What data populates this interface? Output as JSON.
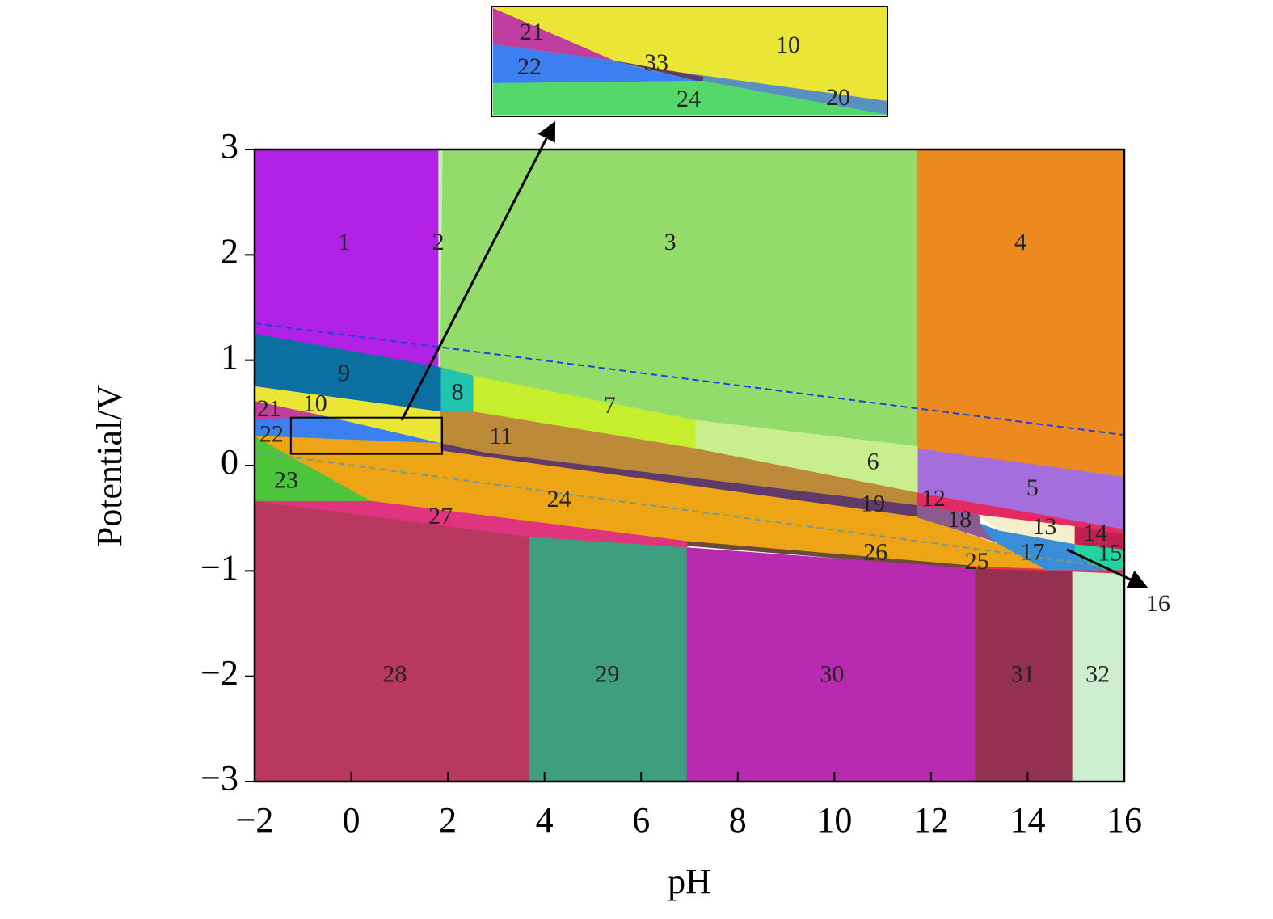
{
  "chart_data": {
    "type": "region",
    "x_label": "pH",
    "y_label": "Potential/V",
    "xlim": [
      -2,
      16
    ],
    "ylim": [
      -3,
      3
    ],
    "xticks": [
      {
        "value": -2,
        "label": "−2"
      },
      0,
      2,
      4,
      6,
      8,
      10,
      12,
      14,
      16
    ],
    "yticks": [
      {
        "value": -3,
        "label": "−3"
      },
      {
        "value": -2,
        "label": "−2"
      },
      {
        "value": -1,
        "label": "−1"
      },
      0,
      1,
      2,
      3
    ],
    "regions": [
      {
        "label": "1",
        "color": "#b122e6",
        "x": [
          -2,
          1.81,
          1.81,
          -2
        ],
        "y": [
          3,
          3,
          0.93,
          1.25
        ],
        "label_x": -0.15,
        "label_y": 2.1
      },
      {
        "label": "2",
        "color": "#c6ecb0",
        "x": [
          1.81,
          1.9,
          1.9,
          1.81
        ],
        "y": [
          3,
          3,
          0.93,
          0.93
        ],
        "label_x": 1.8,
        "label_y": 2.1
      },
      {
        "label": "3",
        "color": "#93dc6b",
        "x": [
          1.9,
          11.72,
          11.72,
          7.12,
          2.52,
          1.85
        ],
        "y": [
          3,
          3,
          0.18,
          0.43,
          0.85,
          0.93
        ],
        "label_x": 6.6,
        "label_y": 2.1
      },
      {
        "label": "4",
        "color": "#ec8a20",
        "x": [
          11.72,
          16,
          16,
          11.72
        ],
        "y": [
          3,
          3,
          -0.11,
          0.16
        ],
        "label_x": 13.85,
        "label_y": 2.1
      },
      {
        "label": "5",
        "color": "#a46fdc",
        "x": [
          11.72,
          16,
          16,
          11.72
        ],
        "y": [
          0.16,
          -0.11,
          -0.61,
          -0.26
        ],
        "label_x": 14.1,
        "label_y": -0.23
      },
      {
        "label": "6",
        "color": "#c9ee8f",
        "x": [
          7.12,
          11.72,
          11.72,
          7.12
        ],
        "y": [
          0.43,
          0.18,
          -0.26,
          0.16
        ],
        "label_x": 10.8,
        "label_y": 0.02
      },
      {
        "label": "7",
        "color": "#c7ee2c",
        "x": [
          2.52,
          7.12,
          7.12,
          2.52
        ],
        "y": [
          0.85,
          0.43,
          0.16,
          0.51
        ],
        "label_x": 5.35,
        "label_y": 0.55
      },
      {
        "label": "8",
        "color": "#22c4b0",
        "x": [
          1.85,
          2.52,
          2.52,
          1.85
        ],
        "y": [
          0.93,
          0.85,
          0.51,
          0.51
        ],
        "label_x": 2.2,
        "label_y": 0.68
      },
      {
        "label": "9",
        "color": "#0b6fa2",
        "x": [
          -2,
          1.85,
          1.85,
          -2
        ],
        "y": [
          1.25,
          0.93,
          0.51,
          0.75
        ],
        "label_x": -0.15,
        "label_y": 0.86
      },
      {
        "label": "10",
        "color": "#ebe535",
        "x": [
          -2,
          1.85,
          1.85,
          -0.58,
          -2
        ],
        "y": [
          0.75,
          0.51,
          0.21,
          0.47,
          0.61
        ],
        "label_x": -0.75,
        "label_y": 0.57
      },
      {
        "label": "21",
        "color": "#c03ea0",
        "x": [
          -2,
          -0.58,
          -2
        ],
        "y": [
          0.61,
          0.47,
          0.43
        ],
        "label_x": -1.7,
        "label_y": 0.52
      },
      {
        "label": "22",
        "color": "#3b7ff0",
        "x": [
          -2,
          -0.58,
          1.85,
          -2
        ],
        "y": [
          0.43,
          0.47,
          0.21,
          0.28
        ],
        "label_x": -1.65,
        "label_y": 0.28
      },
      {
        "label": "11",
        "color": "#bd8a3a",
        "x": [
          1.85,
          2.52,
          7.12,
          11.72,
          11.72,
          2.77,
          1.85
        ],
        "y": [
          0.51,
          0.51,
          0.16,
          -0.26,
          -0.38,
          0.12,
          0.21
        ],
        "label_x": 3.1,
        "label_y": 0.26
      },
      {
        "label": "19",
        "color": "#5f3a6a",
        "x": [
          1.85,
          2.77,
          11.72,
          11.72,
          1.85
        ],
        "y": [
          0.21,
          0.12,
          -0.38,
          -0.49,
          0.14
        ],
        "label_x": 10.8,
        "label_y": -0.38
      },
      {
        "label": "23",
        "color": "#4cc43c",
        "x": [
          -2,
          0.43,
          -2
        ],
        "y": [
          0.28,
          -0.34,
          -0.34
        ],
        "label_x": -1.35,
        "label_y": -0.16
      },
      {
        "label": "25",
        "color": "#e83050",
        "x": [
          12.8,
          16,
          16,
          12.8
        ],
        "y": [
          -0.95,
          -0.99,
          -1.03,
          -0.98
        ],
        "label_x": 12.95,
        "label_y": -0.93
      },
      {
        "label": "24",
        "color": "#eda515",
        "x": [
          -2,
          1.85,
          1.85,
          11.72,
          14.98,
          12.8,
          6.95,
          0.43
        ],
        "y": [
          0.28,
          0.21,
          0.14,
          -0.49,
          -0.99,
          -0.95,
          -0.72,
          -0.34
        ],
        "label_x": 4.3,
        "label_y": -0.34
      },
      {
        "label": "12",
        "color": "#e52a62",
        "x": [
          11.72,
          16,
          16,
          11.72
        ],
        "y": [
          -0.26,
          -0.61,
          -0.66,
          -0.38
        ],
        "label_x": 12.05,
        "label_y": -0.33
      },
      {
        "label": "18",
        "color": "#8a5a90",
        "x": [
          11.72,
          13,
          13,
          13.31,
          11.72
        ],
        "y": [
          -0.38,
          -0.47,
          -0.55,
          -0.72,
          -0.49
        ],
        "label_x": 12.59,
        "label_y": -0.53
      },
      {
        "label": "13",
        "color": "#f5f0cc",
        "x": [
          13,
          14.98,
          14.98,
          13.4
        ],
        "y": [
          -0.47,
          -0.58,
          -0.75,
          -0.62
        ],
        "label_x": 14.35,
        "label_y": -0.6
      },
      {
        "label": "14",
        "color": "#c22050",
        "x": [
          14.98,
          16,
          16,
          14.98
        ],
        "y": [
          -0.58,
          -0.66,
          -0.8,
          -0.75
        ],
        "label_x": 15.4,
        "label_y": -0.66
      },
      {
        "label": "17",
        "color": "#3a8ed8",
        "x": [
          13,
          13.4,
          14.98,
          14.98,
          15.6,
          14.4,
          13.31
        ],
        "y": [
          -0.55,
          -0.62,
          -0.75,
          -0.85,
          -0.99,
          -0.99,
          -0.72
        ],
        "label_x": 14.1,
        "label_y": -0.84
      },
      {
        "label": "15",
        "color": "#22d4a0",
        "x": [
          14.98,
          16,
          16,
          15.6,
          14.98
        ],
        "y": [
          -0.75,
          -0.8,
          -0.99,
          -0.99,
          -0.85
        ],
        "label_x": 15.7,
        "label_y": -0.85
      },
      {
        "label": "26",
        "color": "#6a4a3a",
        "x": [
          6.95,
          12.8,
          12.8,
          6.95
        ],
        "y": [
          -0.72,
          -0.95,
          -0.98,
          -0.76
        ],
        "label_x": 10.85,
        "label_y": -0.84
      },
      {
        "label": "27",
        "color": "#e0357e",
        "x": [
          -2,
          0.43,
          6.95,
          6.95,
          3.69
        ],
        "y": [
          -0.34,
          -0.34,
          -0.72,
          -0.78,
          -0.68
        ],
        "label_x": 1.85,
        "label_y": -0.5
      },
      {
        "label": "28",
        "color": "#b83860",
        "x": [
          -2,
          3.69,
          3.69,
          -2
        ],
        "y": [
          -0.34,
          -0.68,
          -3,
          -3
        ],
        "label_x": 0.9,
        "label_y": -2
      },
      {
        "label": "29",
        "color": "#3f9e80",
        "x": [
          3.69,
          6.95,
          6.95,
          3.69
        ],
        "y": [
          -0.68,
          -0.78,
          -3,
          -3
        ],
        "label_x": 5.3,
        "label_y": -2
      },
      {
        "label": "30",
        "color": "#b82ab0",
        "x": [
          6.95,
          12.92,
          12.92,
          6.95
        ],
        "y": [
          -0.78,
          -0.98,
          -3,
          -3
        ],
        "label_x": 9.95,
        "label_y": -2
      },
      {
        "label": "31",
        "color": "#943050",
        "x": [
          12.92,
          14.93,
          14.93,
          12.92
        ],
        "y": [
          -0.98,
          -1.01,
          -3,
          -3
        ],
        "label_x": 13.9,
        "label_y": -2
      },
      {
        "label": "32",
        "color": "#cdeecf",
        "x": [
          14.93,
          16,
          16,
          14.93
        ],
        "y": [
          -1.01,
          -1.03,
          -3,
          -3
        ],
        "label_x": 15.45,
        "label_y": -2
      }
    ],
    "lines": [
      {
        "color": "#2040e0",
        "x": [
          -2,
          16
        ],
        "y": [
          1.35,
          0.29
        ]
      },
      {
        "color": "#7a9a8a",
        "x": [
          -2,
          16
        ],
        "y": [
          0.126,
          -0.98
        ]
      }
    ],
    "zoom_box": {
      "x": [
        -1.25,
        1.88
      ],
      "y": [
        0.11,
        0.455
      ]
    },
    "pointer_label": {
      "text": "16",
      "x": 16.7,
      "y": -1.33
    },
    "inset": {
      "regions": [
        {
          "label": "21"
        },
        {
          "label": "22"
        },
        {
          "label": "33"
        },
        {
          "label": "10"
        },
        {
          "label": "24"
        },
        {
          "label": "20"
        }
      ]
    }
  }
}
